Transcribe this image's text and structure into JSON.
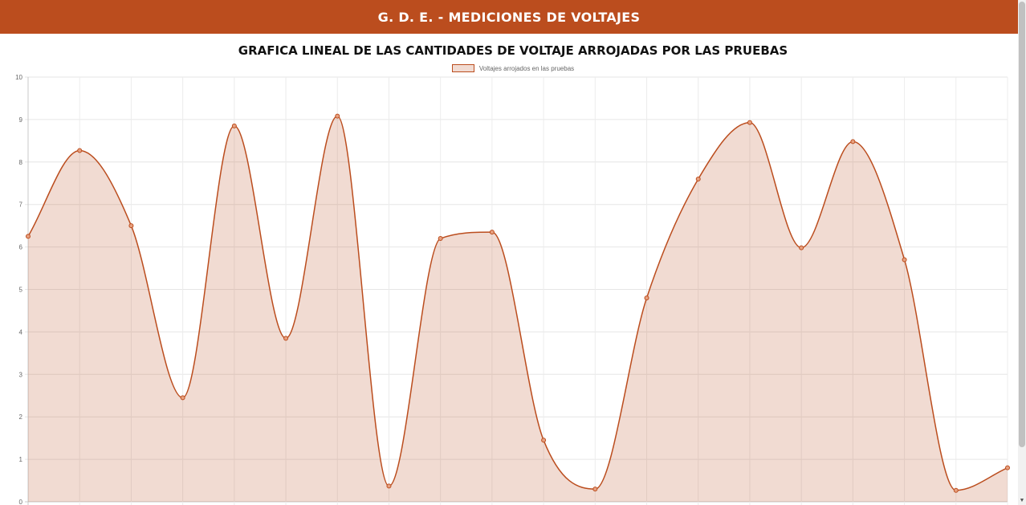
{
  "header": {
    "title": "G. D. E. - MEDICIONES DE VOLTAJES"
  },
  "colors": {
    "accent": "#bb4d1e",
    "fill": "rgba(187,77,30,0.2)"
  },
  "chart_data": {
    "type": "line",
    "title": "GRAFICA LINEAL DE LAS CANTIDADES DE VOLTAJE ARROJADAS POR LAS PRUEBAS",
    "legend_position": "top-center",
    "grid": true,
    "fill": true,
    "smooth": true,
    "ylim": [
      0,
      10
    ],
    "yticks": [
      0,
      1,
      2,
      3,
      4,
      5,
      6,
      7,
      8,
      9,
      10
    ],
    "xlabel": "",
    "ylabel": "",
    "series": [
      {
        "name": "Voltajes arrojados en las pruebas",
        "values": [
          6.25,
          8.27,
          6.5,
          2.45,
          8.85,
          3.85,
          9.08,
          0.37,
          6.2,
          6.35,
          1.45,
          0.3,
          4.8,
          7.6,
          8.93,
          5.98,
          8.48,
          5.7,
          0.27,
          0.8
        ]
      }
    ]
  },
  "scrollbar": {
    "arrow_icon": "▼"
  }
}
